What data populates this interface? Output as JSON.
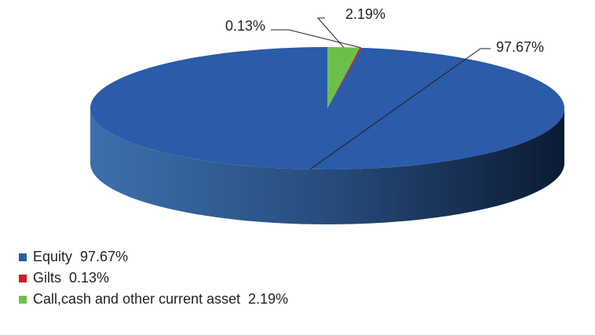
{
  "chart_data": {
    "type": "pie",
    "title": "",
    "series": [
      {
        "name": "Equity",
        "value": 97.67,
        "label": "97.67%",
        "color": "#2b5ba9"
      },
      {
        "name": "Gilts",
        "value": 0.13,
        "label": "0.13%",
        "color": "#c52127"
      },
      {
        "name": "Call,cash and other current asset",
        "value": 2.19,
        "label": "2.19%",
        "color": "#6cc04a"
      }
    ],
    "legend_placement": "bottom-left",
    "style": "3d"
  },
  "legend": [
    {
      "label": "Equity  97.67%"
    },
    {
      "label": "Gilts  0.13%"
    },
    {
      "label": "Call,cash and other current asset  2.19%"
    }
  ]
}
